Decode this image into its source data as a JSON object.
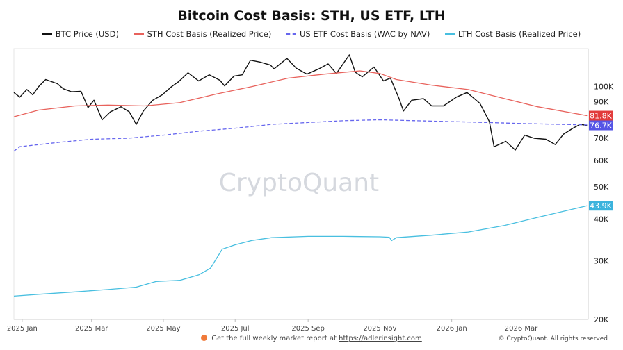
{
  "chart_data": {
    "type": "line",
    "title": "Bitcoin Cost Basis: STH, US ETF, LTH",
    "y_scale": "log",
    "ylim": [
      20000,
      130000
    ],
    "y_ticks": [
      {
        "value": 100000,
        "label": "100K"
      },
      {
        "value": 90000,
        "label": "90K"
      },
      {
        "value": 80000,
        "label": "80K"
      },
      {
        "value": 70000,
        "label": "70K"
      },
      {
        "value": 60000,
        "label": "60K"
      },
      {
        "value": 50000,
        "label": "50K"
      },
      {
        "value": 40000,
        "label": "40K"
      },
      {
        "value": 30000,
        "label": "30K"
      },
      {
        "value": 20000,
        "label": "20K"
      }
    ],
    "x_range": [
      "2024-12-25",
      "2026-04-27"
    ],
    "x_ticks": [
      {
        "date": "2025-01-01",
        "label": "2025 Jan"
      },
      {
        "date": "2025-03-01",
        "label": "2025 Mar"
      },
      {
        "date": "2025-05-01",
        "label": "2025 May"
      },
      {
        "date": "2025-07-01",
        "label": "2025 Jul"
      },
      {
        "date": "2025-09-01",
        "label": "2025 Sep"
      },
      {
        "date": "2025-11-01",
        "label": "2025 Nov"
      },
      {
        "date": "2026-01-01",
        "label": "2026 Jan"
      },
      {
        "date": "2026-03-01",
        "label": "2026 Mar"
      }
    ],
    "legend_position": "top-center",
    "grid": false,
    "watermark": "CryptoQuant",
    "series": [
      {
        "name": "BTC Price (USD)",
        "color": "#111111",
        "style": "solid",
        "end_label": "",
        "points": [
          [
            "2024-12-25",
            96000
          ],
          [
            "2024-12-30",
            93000
          ],
          [
            "2025-01-05",
            98000
          ],
          [
            "2025-01-10",
            94500
          ],
          [
            "2025-01-15",
            100000
          ],
          [
            "2025-01-21",
            105000
          ],
          [
            "2025-01-31",
            102000
          ],
          [
            "2025-02-05",
            98500
          ],
          [
            "2025-02-12",
            96500
          ],
          [
            "2025-02-20",
            96800
          ],
          [
            "2025-02-26",
            86500
          ],
          [
            "2025-03-03",
            91000
          ],
          [
            "2025-03-10",
            79500
          ],
          [
            "2025-03-17",
            84000
          ],
          [
            "2025-03-26",
            87000
          ],
          [
            "2025-04-02",
            84000
          ],
          [
            "2025-04-08",
            77000
          ],
          [
            "2025-04-14",
            84500
          ],
          [
            "2025-04-22",
            91000
          ],
          [
            "2025-04-30",
            94500
          ],
          [
            "2025-05-08",
            100000
          ],
          [
            "2025-05-14",
            103500
          ],
          [
            "2025-05-22",
            110000
          ],
          [
            "2025-05-31",
            104000
          ],
          [
            "2025-06-09",
            108500
          ],
          [
            "2025-06-18",
            104500
          ],
          [
            "2025-06-22",
            100500
          ],
          [
            "2025-06-30",
            107500
          ],
          [
            "2025-07-07",
            108500
          ],
          [
            "2025-07-14",
            120000
          ],
          [
            "2025-07-22",
            118500
          ],
          [
            "2025-07-31",
            116000
          ],
          [
            "2025-08-03",
            113000
          ],
          [
            "2025-08-14",
            121500
          ],
          [
            "2025-08-22",
            113500
          ],
          [
            "2025-08-31",
            109000
          ],
          [
            "2025-09-10",
            113000
          ],
          [
            "2025-09-18",
            117000
          ],
          [
            "2025-09-25",
            109500
          ],
          [
            "2025-10-06",
            124500
          ],
          [
            "2025-10-11",
            110500
          ],
          [
            "2025-10-17",
            107000
          ],
          [
            "2025-10-27",
            114500
          ],
          [
            "2025-11-04",
            104000
          ],
          [
            "2025-11-10",
            106000
          ],
          [
            "2025-11-17",
            92500
          ],
          [
            "2025-11-21",
            84500
          ],
          [
            "2025-11-28",
            91000
          ],
          [
            "2025-12-08",
            92000
          ],
          [
            "2025-12-15",
            87500
          ],
          [
            "2025-12-25",
            87500
          ],
          [
            "2026-01-05",
            93000
          ],
          [
            "2026-01-14",
            96000
          ],
          [
            "2026-01-25",
            89000
          ],
          [
            "2026-02-02",
            78500
          ],
          [
            "2026-02-06",
            66000
          ],
          [
            "2026-02-16",
            68500
          ],
          [
            "2026-02-24",
            64500
          ],
          [
            "2026-03-04",
            71500
          ],
          [
            "2026-03-12",
            70000
          ],
          [
            "2026-03-22",
            69500
          ],
          [
            "2026-03-30",
            67000
          ],
          [
            "2026-04-06",
            72000
          ],
          [
            "2026-04-14",
            75000
          ],
          [
            "2026-04-20",
            77000
          ],
          [
            "2026-04-26",
            76500
          ]
        ]
      },
      {
        "name": "STH Cost Basis (Realized Price)",
        "color": "#e8625c",
        "style": "solid",
        "end_label": "81.8K",
        "points": [
          [
            "2024-12-25",
            81200
          ],
          [
            "2025-01-15",
            85000
          ],
          [
            "2025-02-15",
            87500
          ],
          [
            "2025-03-15",
            88000
          ],
          [
            "2025-04-15",
            87500
          ],
          [
            "2025-05-15",
            89500
          ],
          [
            "2025-06-15",
            95000
          ],
          [
            "2025-07-15",
            100000
          ],
          [
            "2025-08-15",
            106000
          ],
          [
            "2025-09-15",
            109000
          ],
          [
            "2025-10-15",
            111500
          ],
          [
            "2025-11-01",
            109500
          ],
          [
            "2025-11-15",
            105000
          ],
          [
            "2025-12-15",
            101000
          ],
          [
            "2026-01-15",
            98000
          ],
          [
            "2026-02-15",
            92000
          ],
          [
            "2026-03-15",
            87000
          ],
          [
            "2026-04-26",
            81800
          ]
        ]
      },
      {
        "name": "US ETF Cost Basis (WAC by NAV)",
        "color": "#6666ee",
        "style": "dashed",
        "end_label": "76.7K",
        "points": [
          [
            "2024-12-25",
            64000
          ],
          [
            "2024-12-30",
            66000
          ],
          [
            "2025-02-01",
            68000
          ],
          [
            "2025-03-01",
            69500
          ],
          [
            "2025-04-01",
            70000
          ],
          [
            "2025-05-01",
            71500
          ],
          [
            "2025-06-01",
            73500
          ],
          [
            "2025-07-01",
            75000
          ],
          [
            "2025-08-01",
            77000
          ],
          [
            "2025-09-01",
            78000
          ],
          [
            "2025-10-01",
            79000
          ],
          [
            "2025-11-01",
            79500
          ],
          [
            "2025-12-01",
            79000
          ],
          [
            "2026-01-01",
            78500
          ],
          [
            "2026-02-01",
            78000
          ],
          [
            "2026-03-01",
            77500
          ],
          [
            "2026-04-26",
            76700
          ]
        ]
      },
      {
        "name": "LTH Cost Basis (Realized Price)",
        "color": "#48bfe0",
        "style": "solid",
        "end_label": "43.9K",
        "points": [
          [
            "2024-12-25",
            23500
          ],
          [
            "2025-01-15",
            23800
          ],
          [
            "2025-02-15",
            24200
          ],
          [
            "2025-03-15",
            24600
          ],
          [
            "2025-04-08",
            25000
          ],
          [
            "2025-04-25",
            26000
          ],
          [
            "2025-05-15",
            26200
          ],
          [
            "2025-05-31",
            27200
          ],
          [
            "2025-06-10",
            28500
          ],
          [
            "2025-06-20",
            32500
          ],
          [
            "2025-07-01",
            33500
          ],
          [
            "2025-07-15",
            34500
          ],
          [
            "2025-08-01",
            35200
          ],
          [
            "2025-09-01",
            35500
          ],
          [
            "2025-10-01",
            35500
          ],
          [
            "2025-11-01",
            35400
          ],
          [
            "2025-11-09",
            35300
          ],
          [
            "2025-11-11",
            34500
          ],
          [
            "2025-11-15",
            35200
          ],
          [
            "2025-12-15",
            35800
          ],
          [
            "2026-01-15",
            36600
          ],
          [
            "2026-02-15",
            38300
          ],
          [
            "2026-03-15",
            40500
          ],
          [
            "2026-04-26",
            43900
          ]
        ]
      }
    ]
  },
  "footer": {
    "note": "Get the full weekly market report at",
    "link": "https://adlerinsight.com",
    "copyright": "© CryptoQuant. All rights reserved"
  }
}
